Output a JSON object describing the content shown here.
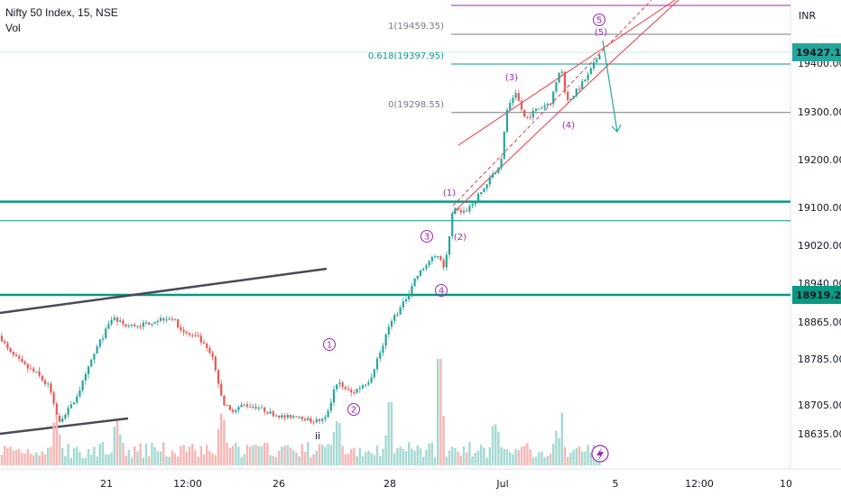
{
  "symbol": {
    "title": "Nifty 50 Index, 15, NSE",
    "volume_label": "Vol",
    "currency": "INR"
  },
  "price_axis": {
    "ticks": [
      19400.0,
      19300.0,
      19200.0,
      19100.0,
      19020.0,
      18940.0,
      18865.0,
      18785.0,
      18705.0,
      18635.0
    ],
    "tick_labels": [
      "19400.00",
      "19300.00",
      "19200.00",
      "19100.00",
      "19020.00",
      "18940.00",
      "18865.00",
      "18785.00",
      "18705.00",
      "18635.00"
    ],
    "badges": [
      {
        "value": 19427.1,
        "label": "19427.10",
        "color": "#26a69a"
      },
      {
        "value": 18919.25,
        "label": "18919.25",
        "color": "#089981"
      }
    ]
  },
  "time_axis": {
    "labels": [
      "21",
      "12:00",
      "26",
      "28",
      "Jul",
      "5",
      "12:00",
      "10"
    ]
  },
  "fibonacci": [
    {
      "label": "1(19459.35)",
      "value": 19459.35,
      "color": "#787b86"
    },
    {
      "label": "0.618(19397.95)",
      "value": 19397.95,
      "color": "#089981"
    },
    {
      "label": "0(19298.55)",
      "value": 19298.55,
      "color": "#787b86"
    }
  ],
  "wave_labels": {
    "minor": [
      "1",
      "2",
      "3",
      "4",
      "5"
    ],
    "major": [
      "(1)",
      "(2)",
      "(3)",
      "(4)",
      "(5)"
    ],
    "sub": "ii"
  },
  "colors": {
    "up": "#26a69a",
    "down": "#ef5350",
    "support": "#089981",
    "channel": "#f23645",
    "wave": "#9c27b0",
    "trendline": "#4a4a55",
    "forecast_arrow": "#26a69a"
  },
  "chart_data": {
    "type": "candlestick",
    "title": "Nifty 50 Index, 15, NSE",
    "ylim": [
      18590,
      19470
    ],
    "support_levels": [
      19112,
      19072,
      18919.25
    ],
    "last_price": 19427.1,
    "price_path": [
      [
        0,
        18835
      ],
      [
        10,
        18800
      ],
      [
        25,
        18775
      ],
      [
        40,
        18760
      ],
      [
        55,
        18735
      ],
      [
        65,
        18665
      ],
      [
        80,
        18705
      ],
      [
        95,
        18755
      ],
      [
        110,
        18820
      ],
      [
        125,
        18875
      ],
      [
        140,
        18855
      ],
      [
        160,
        18860
      ],
      [
        175,
        18870
      ],
      [
        190,
        18875
      ],
      [
        205,
        18840
      ],
      [
        220,
        18830
      ],
      [
        235,
        18790
      ],
      [
        245,
        18720
      ],
      [
        255,
        18690
      ],
      [
        270,
        18705
      ],
      [
        285,
        18700
      ],
      [
        300,
        18685
      ],
      [
        315,
        18675
      ],
      [
        330,
        18680
      ],
      [
        345,
        18665
      ],
      [
        360,
        18670
      ],
      [
        372,
        18745
      ],
      [
        390,
        18725
      ],
      [
        410,
        18750
      ],
      [
        425,
        18815
      ],
      [
        432,
        18865
      ],
      [
        445,
        18895
      ],
      [
        460,
        18950
      ],
      [
        475,
        18985
      ],
      [
        485,
        19000
      ],
      [
        493,
        18970
      ],
      [
        502,
        19100
      ],
      [
        512,
        19085
      ],
      [
        525,
        19110
      ],
      [
        540,
        19150
      ],
      [
        555,
        19195
      ],
      [
        562,
        19305
      ],
      [
        572,
        19335
      ],
      [
        582,
        19285
      ],
      [
        595,
        19305
      ],
      [
        610,
        19320
      ],
      [
        622,
        19395
      ],
      [
        628,
        19320
      ],
      [
        640,
        19345
      ],
      [
        652,
        19375
      ],
      [
        660,
        19405
      ],
      [
        668,
        19440
      ]
    ],
    "series": [
      {
        "name": "Nifty 50 Index, 15, NSE",
        "kind": "price"
      },
      {
        "name": "Vol",
        "kind": "volume"
      }
    ]
  }
}
